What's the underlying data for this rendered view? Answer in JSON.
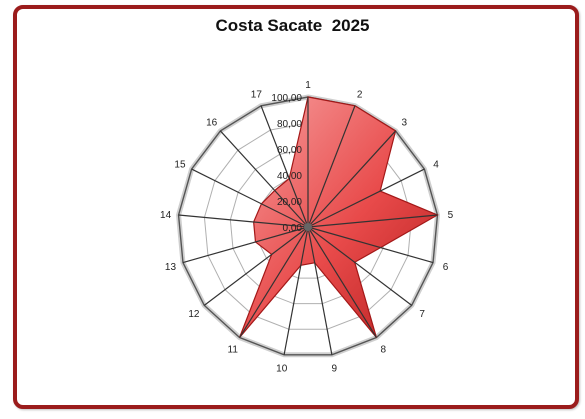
{
  "chart_data": {
    "type": "radar",
    "title": "Costa Sacate  2025",
    "categories": [
      "1",
      "2",
      "3",
      "4",
      "5",
      "6",
      "7",
      "8",
      "9",
      "10",
      "11",
      "12",
      "13",
      "14",
      "15",
      "16",
      "17"
    ],
    "values": [
      100,
      100,
      100,
      62,
      100,
      58,
      45,
      100,
      28,
      30,
      100,
      35,
      42,
      42,
      40,
      38,
      40
    ],
    "rlim": [
      0,
      100
    ],
    "ticks": [
      "0,00",
      "20,00",
      "40,00",
      "60,00",
      "80,00",
      "100,00"
    ],
    "grid": true,
    "legend": "none",
    "fill_color": "#e84a4a"
  }
}
